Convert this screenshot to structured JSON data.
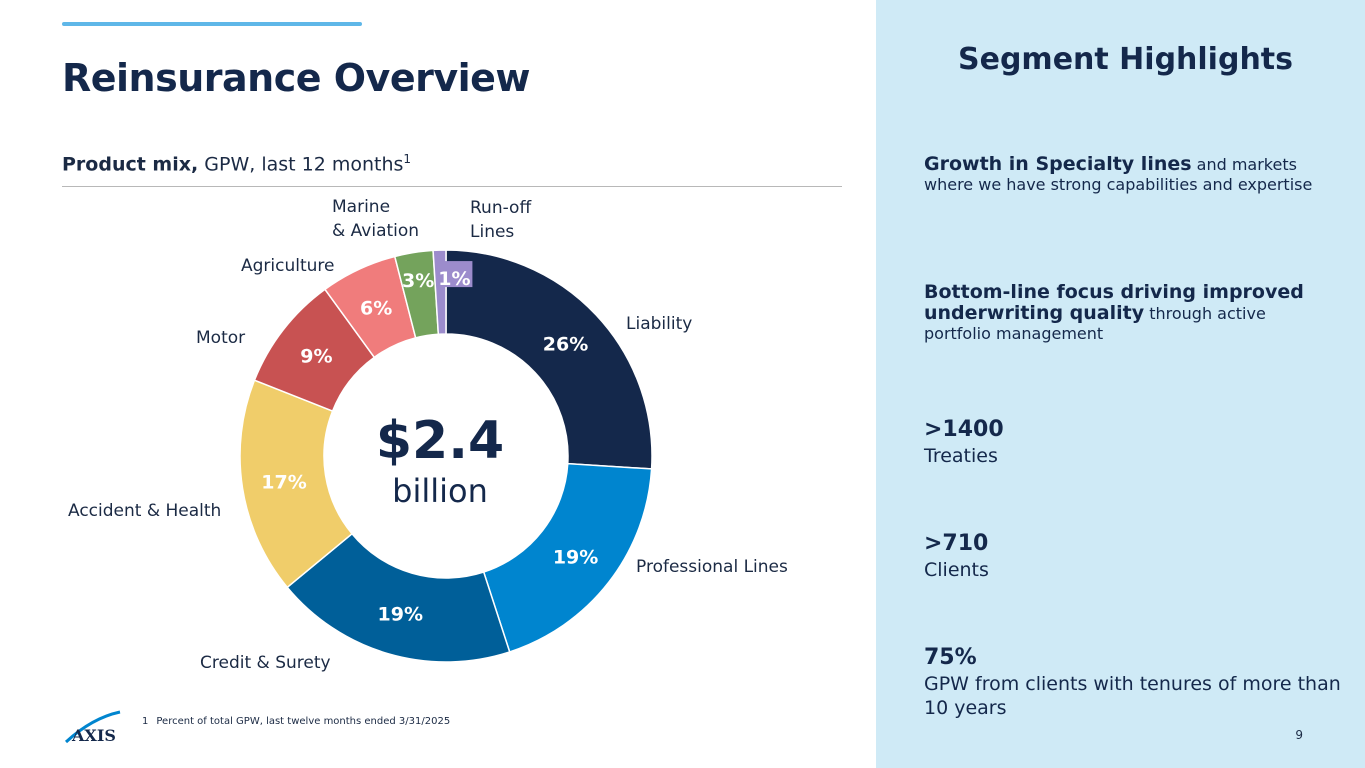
{
  "header": {
    "title": "Reinsurance Overview"
  },
  "subtitle": {
    "bold": "Product mix,",
    "rest": "GPW, last 12 months",
    "sup": "1"
  },
  "chart_data": {
    "type": "pie",
    "donut": true,
    "center_value": "$2.4",
    "center_unit": "billion",
    "slices": [
      {
        "label_lines": [
          "Liability"
        ],
        "value": 26,
        "value_label": "26%",
        "color": "#14284b"
      },
      {
        "label_lines": [
          "Professional Lines"
        ],
        "value": 19,
        "value_label": "19%",
        "color": "#0085cf"
      },
      {
        "label_lines": [
          "Credit & Surety"
        ],
        "value": 19,
        "value_label": "19%",
        "color": "#005f99"
      },
      {
        "label_lines": [
          "Accident & Health"
        ],
        "value": 17,
        "value_label": "17%",
        "color": "#f0cd6a"
      },
      {
        "label_lines": [
          "Motor"
        ],
        "value": 9,
        "value_label": "9%",
        "color": "#c85252"
      },
      {
        "label_lines": [
          "Agriculture"
        ],
        "value": 6,
        "value_label": "6%",
        "color": "#f07c7c"
      },
      {
        "label_lines": [
          "Marine",
          "& Aviation"
        ],
        "value": 3,
        "value_label": "3%",
        "color": "#74a35c"
      },
      {
        "label_lines": [
          "Run-off",
          "Lines"
        ],
        "value": 1,
        "value_label": "1%",
        "color": "#9c8ccc"
      }
    ],
    "legend": "none"
  },
  "footnote": {
    "number": "1",
    "text": "Percent of total GPW, last twelve months ended 3/31/2025"
  },
  "logo": {
    "text": "AXIS"
  },
  "side_panel": {
    "title": "Segment Highlights",
    "highlight1": {
      "bold": "Growth in Specialty lines",
      "rest": " and markets where we have strong capabilities and expertise"
    },
    "highlight2": {
      "bold": "Bottom-line focus driving improved underwriting quality",
      "rest": " through active portfolio management"
    },
    "stats": [
      {
        "value": ">1400",
        "desc": "Treaties"
      },
      {
        "value": ">710",
        "desc": "Clients"
      },
      {
        "value": "75%",
        "desc": "GPW from clients with tenures of more than 10 years"
      }
    ]
  },
  "page_number": "9"
}
